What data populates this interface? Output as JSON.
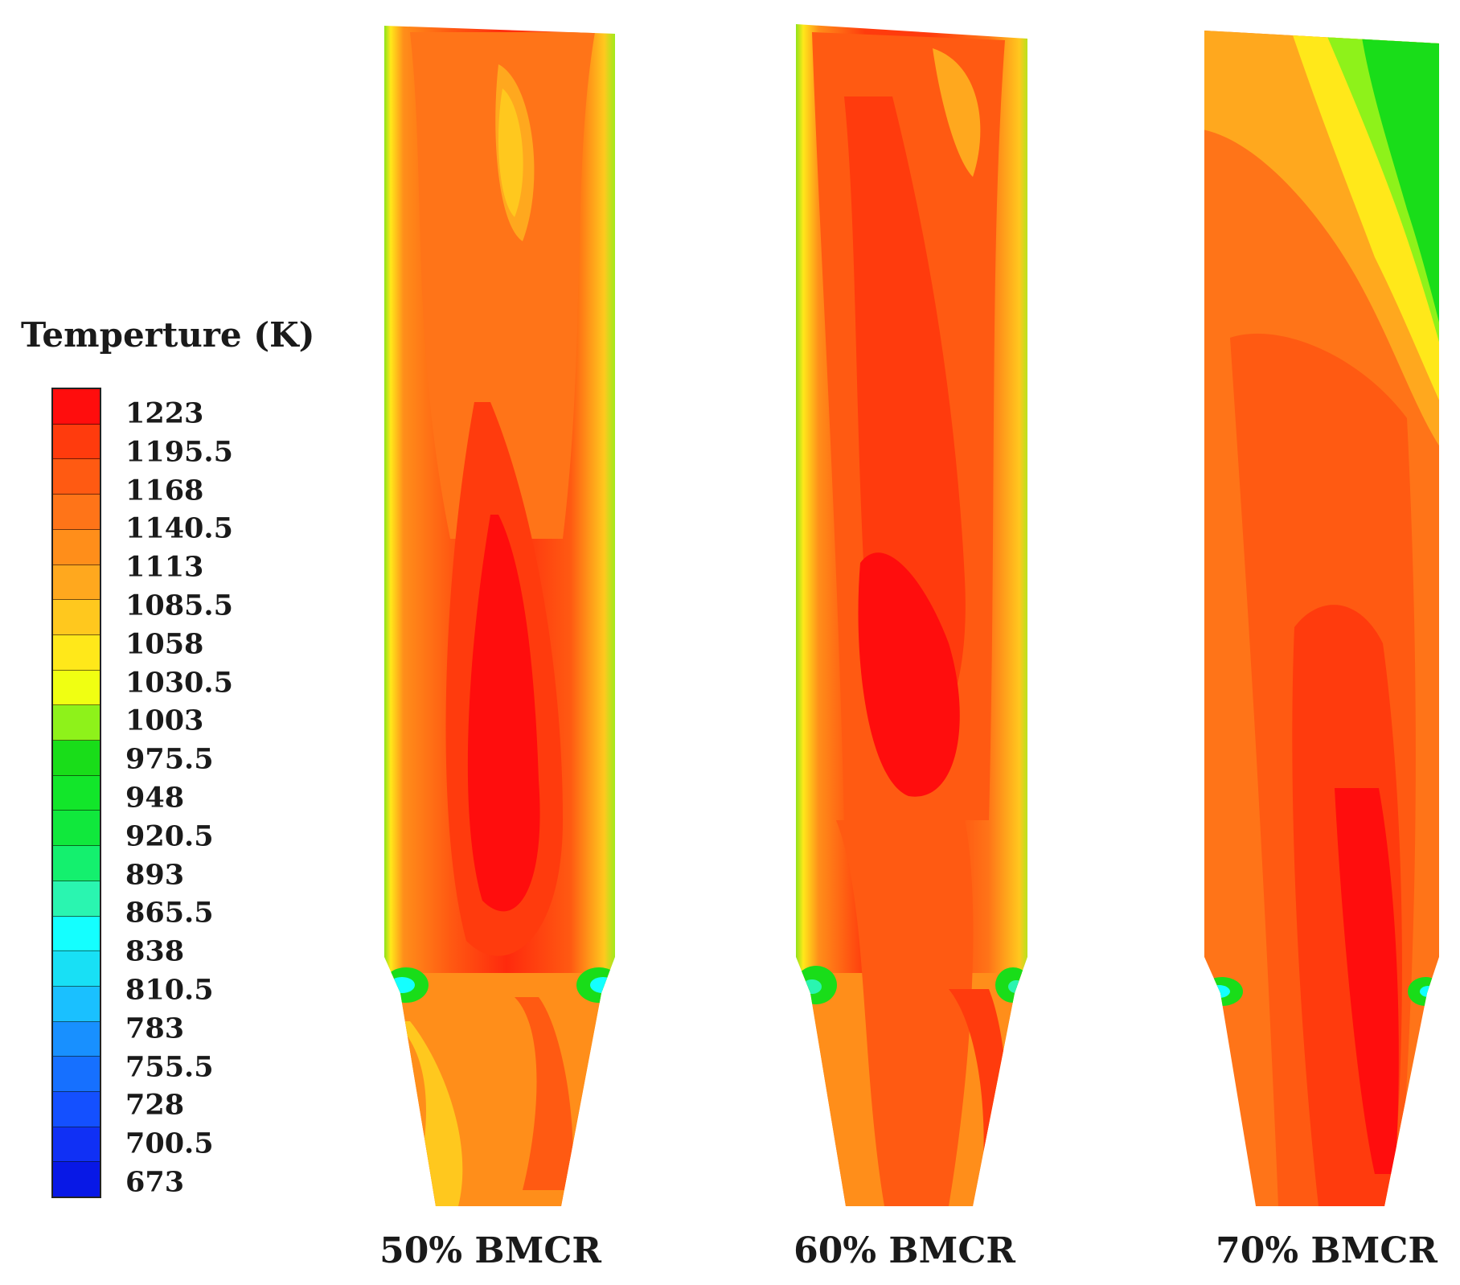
{
  "legend": {
    "title": "Temperture (K)",
    "ticks": [
      "1223",
      "1195.5",
      "1168",
      "1140.5",
      "1113",
      "1085.5",
      "1058",
      "1030.5",
      "1003",
      "975.5",
      "948",
      "920.5",
      "893",
      "865.5",
      "838",
      "810.5",
      "783",
      "755.5",
      "728",
      "700.5",
      "673"
    ],
    "colors": [
      "#ff0d0d",
      "#ff3b0d",
      "#ff5a12",
      "#ff7418",
      "#ff8e1a",
      "#ffa81e",
      "#ffc81e",
      "#ffe81a",
      "#f0ff12",
      "#8ef21a",
      "#19dd19",
      "#12e62a",
      "#10e83c",
      "#14f06e",
      "#2af5b0",
      "#14ffff",
      "#18e0f5",
      "#1ac0ff",
      "#1890ff",
      "#1670ff",
      "#1450ff",
      "#1030f5",
      "#0818e6"
    ]
  },
  "panels": [
    {
      "label": "50% BMCR"
    },
    {
      "label": "60% BMCR"
    },
    {
      "label": "70% BMCR"
    }
  ]
}
